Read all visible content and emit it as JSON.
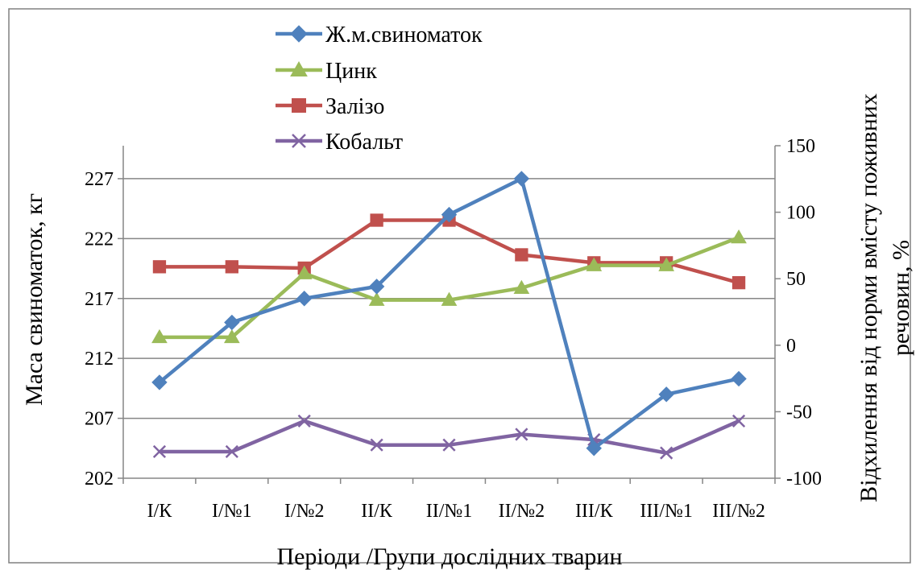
{
  "chart_data": {
    "type": "line",
    "title": "",
    "xlabel": "Періоди /Групи дослідних тварин",
    "ylabel": "Маса свиноматок, кг",
    "y2label_line1": "Відхилення від норми вмісту поживних",
    "y2label_line2": "речовин, %",
    "categories": [
      "I/К",
      "I/№1",
      "I/№2",
      "II/К",
      "II/№1",
      "II/№2",
      "III/К",
      "III/№1",
      "III/№2"
    ],
    "y_axis": {
      "min": 202,
      "max": 229.75,
      "ticks": [
        202,
        207,
        212,
        217,
        222,
        227
      ]
    },
    "y2_axis": {
      "min": -100,
      "max": 150,
      "ticks": [
        -100,
        -50,
        0,
        50,
        100,
        150
      ]
    },
    "grid": true,
    "legend_position": "top",
    "series": [
      {
        "name": "Ж.м.свиноматок",
        "axis": "left",
        "marker": "diamond",
        "color": "#4F81BD",
        "values": [
          210,
          215,
          217,
          218,
          224,
          227,
          204.5,
          209,
          210.3
        ]
      },
      {
        "name": "Цинк",
        "axis": "right",
        "marker": "triangle",
        "color": "#9BBB59",
        "values": [
          6,
          6,
          54,
          34,
          34,
          43,
          60,
          60,
          81
        ]
      },
      {
        "name": "Залізо",
        "axis": "right",
        "marker": "square",
        "color": "#C0504D",
        "values": [
          59,
          59,
          58,
          94,
          94,
          68,
          62,
          62,
          47
        ]
      },
      {
        "name": "Кобальт",
        "axis": "right",
        "marker": "x",
        "color": "#8064A2",
        "values": [
          -80,
          -80,
          -57,
          -75,
          -75,
          -67,
          -71,
          -81,
          -57
        ]
      }
    ]
  }
}
